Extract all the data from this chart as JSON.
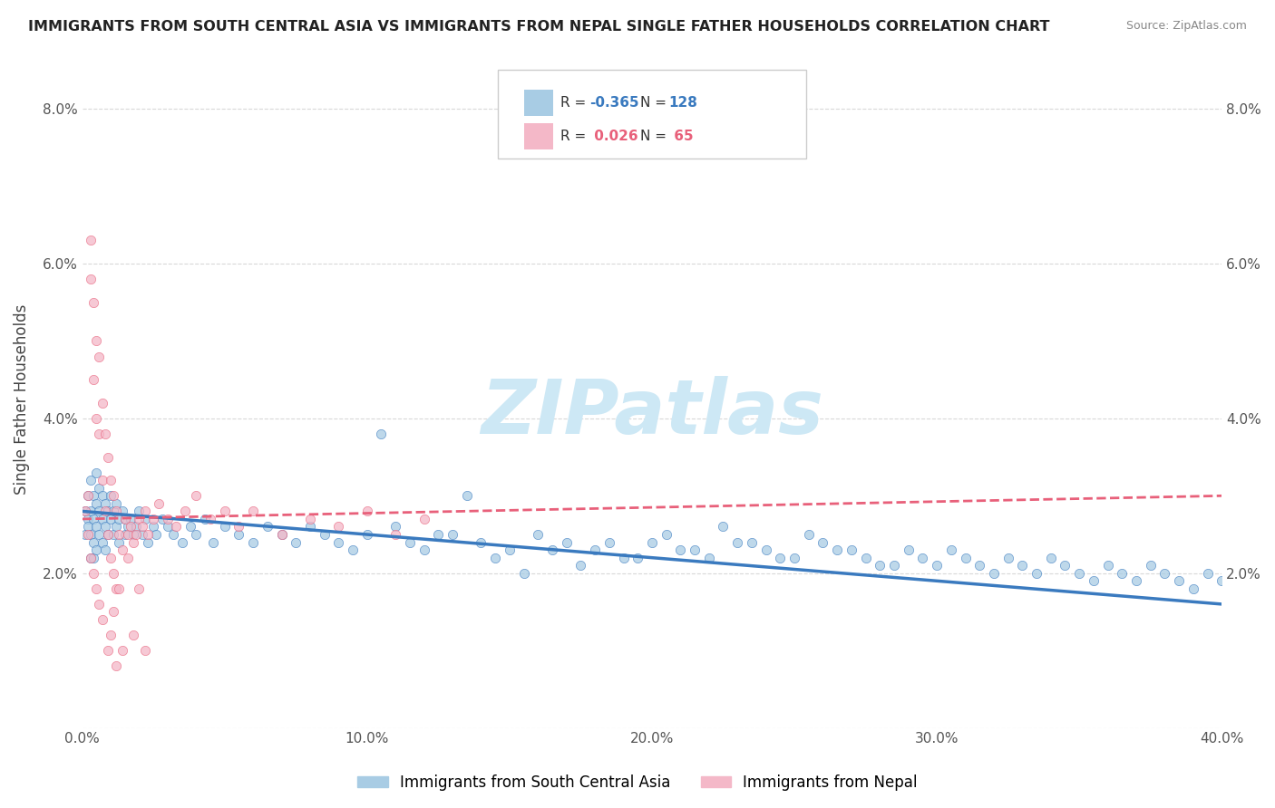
{
  "title": "IMMIGRANTS FROM SOUTH CENTRAL ASIA VS IMMIGRANTS FROM NEPAL SINGLE FATHER HOUSEHOLDS CORRELATION CHART",
  "source": "Source: ZipAtlas.com",
  "ylabel": "Single Father Households",
  "legend_labels": [
    "Immigrants from South Central Asia",
    "Immigrants from Nepal"
  ],
  "legend_R": [
    -0.365,
    0.026
  ],
  "legend_N": [
    128,
    65
  ],
  "blue_color": "#a8cce4",
  "pink_color": "#f4b8c8",
  "blue_line_color": "#3a7abf",
  "pink_line_color": "#e8607a",
  "xmin": 0.0,
  "xmax": 0.4,
  "ymin": 0.0,
  "ymax": 0.085,
  "xticks": [
    0.0,
    0.1,
    0.2,
    0.3,
    0.4
  ],
  "xtick_labels": [
    "0.0%",
    "10.0%",
    "20.0%",
    "30.0%",
    "40.0%"
  ],
  "yticks": [
    0.0,
    0.02,
    0.04,
    0.06,
    0.08
  ],
  "ytick_labels": [
    "",
    "2.0%",
    "4.0%",
    "6.0%",
    "8.0%"
  ],
  "blue_line_x0": 0.0,
  "blue_line_y0": 0.028,
  "blue_line_x1": 0.4,
  "blue_line_y1": 0.016,
  "pink_line_x0": 0.0,
  "pink_line_x1": 0.4,
  "pink_line_y0": 0.027,
  "pink_line_y1": 0.03,
  "watermark": "ZIPatlas",
  "watermark_color": "#cde8f5",
  "blue_scatter_x": [
    0.001,
    0.001,
    0.002,
    0.002,
    0.002,
    0.003,
    0.003,
    0.003,
    0.003,
    0.004,
    0.004,
    0.004,
    0.004,
    0.005,
    0.005,
    0.005,
    0.005,
    0.006,
    0.006,
    0.006,
    0.007,
    0.007,
    0.007,
    0.008,
    0.008,
    0.008,
    0.009,
    0.009,
    0.01,
    0.01,
    0.011,
    0.011,
    0.012,
    0.012,
    0.013,
    0.013,
    0.014,
    0.015,
    0.015,
    0.016,
    0.017,
    0.018,
    0.019,
    0.02,
    0.021,
    0.022,
    0.023,
    0.025,
    0.026,
    0.028,
    0.03,
    0.032,
    0.035,
    0.038,
    0.04,
    0.043,
    0.046,
    0.05,
    0.055,
    0.06,
    0.065,
    0.07,
    0.075,
    0.08,
    0.085,
    0.09,
    0.095,
    0.1,
    0.11,
    0.115,
    0.12,
    0.13,
    0.14,
    0.15,
    0.16,
    0.17,
    0.18,
    0.19,
    0.2,
    0.21,
    0.22,
    0.23,
    0.24,
    0.25,
    0.26,
    0.27,
    0.275,
    0.285,
    0.29,
    0.295,
    0.3,
    0.305,
    0.31,
    0.315,
    0.32,
    0.325,
    0.33,
    0.335,
    0.34,
    0.345,
    0.35,
    0.355,
    0.36,
    0.365,
    0.37,
    0.375,
    0.38,
    0.385,
    0.39,
    0.395,
    0.4,
    0.105,
    0.125,
    0.135,
    0.145,
    0.155,
    0.165,
    0.175,
    0.185,
    0.195,
    0.205,
    0.215,
    0.225,
    0.235,
    0.245,
    0.255,
    0.265,
    0.28
  ],
  "blue_scatter_y": [
    0.028,
    0.025,
    0.03,
    0.027,
    0.026,
    0.032,
    0.028,
    0.025,
    0.022,
    0.03,
    0.027,
    0.024,
    0.022,
    0.033,
    0.029,
    0.026,
    0.023,
    0.031,
    0.028,
    0.025,
    0.03,
    0.027,
    0.024,
    0.029,
    0.026,
    0.023,
    0.028,
    0.025,
    0.03,
    0.027,
    0.028,
    0.025,
    0.029,
    0.026,
    0.027,
    0.024,
    0.028,
    0.027,
    0.025,
    0.026,
    0.027,
    0.025,
    0.026,
    0.028,
    0.025,
    0.027,
    0.024,
    0.026,
    0.025,
    0.027,
    0.026,
    0.025,
    0.024,
    0.026,
    0.025,
    0.027,
    0.024,
    0.026,
    0.025,
    0.024,
    0.026,
    0.025,
    0.024,
    0.026,
    0.025,
    0.024,
    0.023,
    0.025,
    0.026,
    0.024,
    0.023,
    0.025,
    0.024,
    0.023,
    0.025,
    0.024,
    0.023,
    0.022,
    0.024,
    0.023,
    0.022,
    0.024,
    0.023,
    0.022,
    0.024,
    0.023,
    0.022,
    0.021,
    0.023,
    0.022,
    0.021,
    0.023,
    0.022,
    0.021,
    0.02,
    0.022,
    0.021,
    0.02,
    0.022,
    0.021,
    0.02,
    0.019,
    0.021,
    0.02,
    0.019,
    0.021,
    0.02,
    0.019,
    0.018,
    0.02,
    0.019,
    0.038,
    0.025,
    0.03,
    0.022,
    0.02,
    0.023,
    0.021,
    0.024,
    0.022,
    0.025,
    0.023,
    0.026,
    0.024,
    0.022,
    0.025,
    0.023,
    0.021
  ],
  "pink_scatter_x": [
    0.001,
    0.002,
    0.002,
    0.003,
    0.003,
    0.003,
    0.004,
    0.004,
    0.004,
    0.005,
    0.005,
    0.005,
    0.006,
    0.006,
    0.006,
    0.007,
    0.007,
    0.007,
    0.008,
    0.008,
    0.009,
    0.009,
    0.01,
    0.01,
    0.011,
    0.011,
    0.012,
    0.012,
    0.013,
    0.014,
    0.015,
    0.016,
    0.017,
    0.018,
    0.019,
    0.02,
    0.021,
    0.022,
    0.023,
    0.025,
    0.027,
    0.03,
    0.033,
    0.036,
    0.04,
    0.045,
    0.05,
    0.055,
    0.06,
    0.07,
    0.08,
    0.09,
    0.1,
    0.11,
    0.12,
    0.009,
    0.01,
    0.011,
    0.012,
    0.013,
    0.014,
    0.016,
    0.018,
    0.02,
    0.022
  ],
  "pink_scatter_y": [
    0.028,
    0.03,
    0.025,
    0.063,
    0.058,
    0.022,
    0.055,
    0.045,
    0.02,
    0.05,
    0.04,
    0.018,
    0.048,
    0.038,
    0.016,
    0.042,
    0.032,
    0.014,
    0.038,
    0.028,
    0.035,
    0.025,
    0.032,
    0.022,
    0.03,
    0.02,
    0.028,
    0.018,
    0.025,
    0.023,
    0.027,
    0.025,
    0.026,
    0.024,
    0.025,
    0.027,
    0.026,
    0.028,
    0.025,
    0.027,
    0.029,
    0.027,
    0.026,
    0.028,
    0.03,
    0.027,
    0.028,
    0.026,
    0.028,
    0.025,
    0.027,
    0.026,
    0.028,
    0.025,
    0.027,
    0.01,
    0.012,
    0.015,
    0.008,
    0.018,
    0.01,
    0.022,
    0.012,
    0.018,
    0.01
  ]
}
